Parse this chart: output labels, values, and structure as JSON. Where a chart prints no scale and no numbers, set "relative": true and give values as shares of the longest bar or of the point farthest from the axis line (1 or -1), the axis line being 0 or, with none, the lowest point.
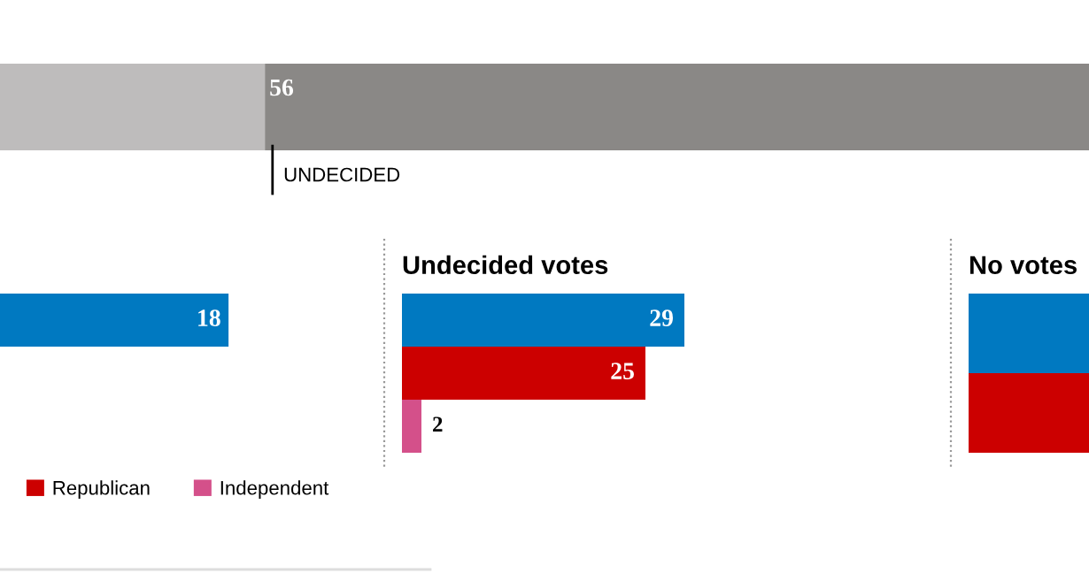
{
  "chart_data": [
    {
      "type": "bar",
      "orientation": "horizontal",
      "stacked": true,
      "categories": [
        null
      ],
      "tick_labels": false,
      "legend": false,
      "series": [
        {
          "color": "#bebcbc",
          "values": [
            18
          ]
        },
        {
          "color": "#8a8886",
          "values": [
            56
          ],
          "value_labels": [
            "56"
          ]
        }
      ],
      "annotations": [
        "UNDECIDED"
      ]
    },
    {
      "type": "bar",
      "orientation": "horizontal",
      "categories": [
        null
      ],
      "tick_labels": false,
      "data_labels": true,
      "legend": "bottom",
      "series": [
        {
          "color": "#0079c1",
          "values": [
            18
          ]
        },
        {
          "name": "Republican",
          "color": "#cc0000",
          "values": [
            null
          ]
        },
        {
          "name": "Independent",
          "color": "#d4508a",
          "values": [
            null
          ]
        }
      ]
    },
    {
      "type": "bar",
      "orientation": "horizontal",
      "title": "Undecided votes",
      "categories": [
        null
      ],
      "tick_labels": false,
      "data_labels": true,
      "legend": false,
      "series": [
        {
          "color": "#0079c1",
          "values": [
            29
          ]
        },
        {
          "color": "#cc0000",
          "values": [
            25
          ]
        },
        {
          "color": "#d4508a",
          "values": [
            2
          ]
        }
      ]
    },
    {
      "type": "bar",
      "orientation": "horizontal",
      "title": "No votes",
      "categories": [
        null
      ],
      "relative": true,
      "tick_labels": false,
      "legend": false,
      "series": [
        {
          "color": "#0079c1",
          "values": [
            1
          ]
        },
        {
          "color": "#cc0000",
          "values": [
            1
          ]
        }
      ]
    }
  ]
}
